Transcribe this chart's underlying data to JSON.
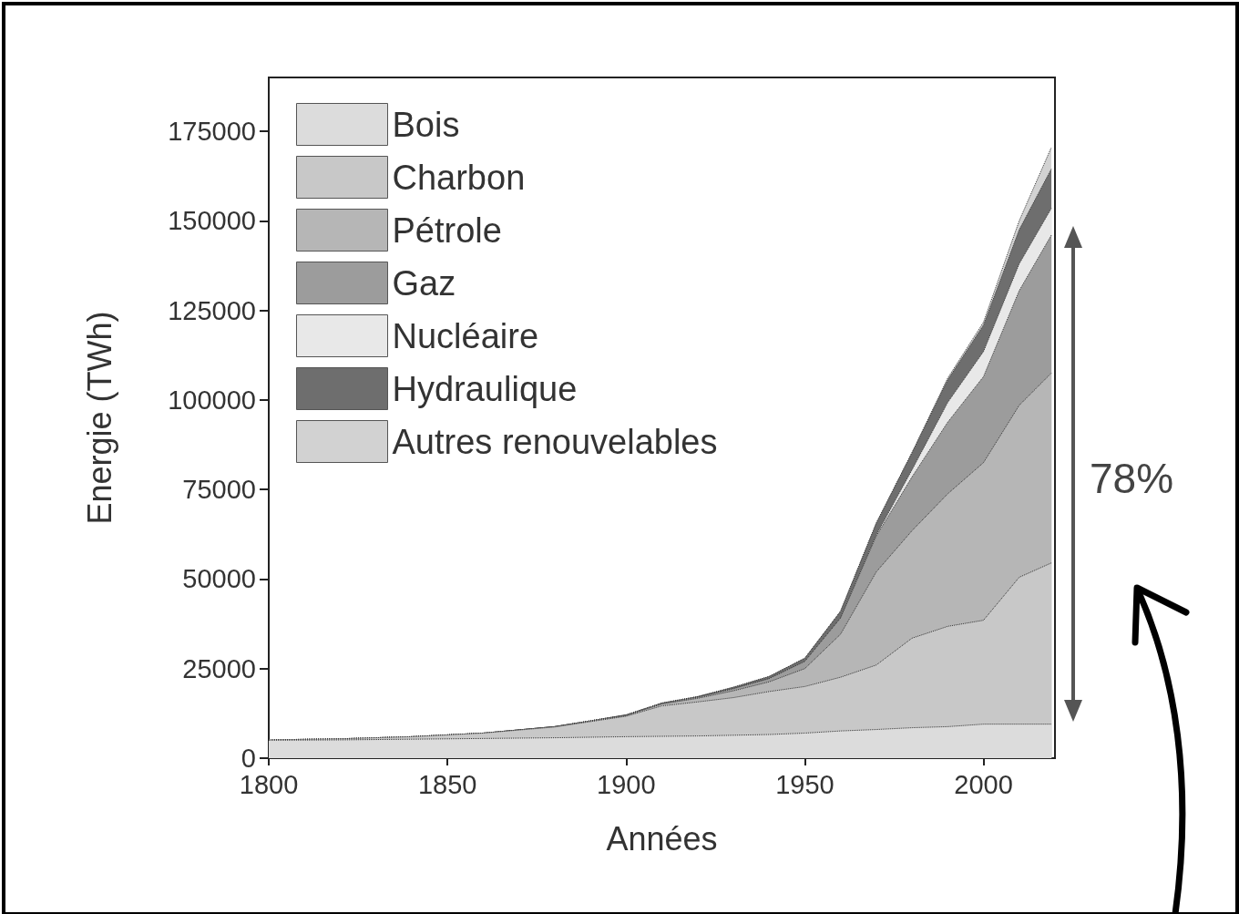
{
  "chart_data": {
    "type": "area",
    "stacked": true,
    "xlabel": "Années",
    "ylabel": "Energie (TWh)",
    "x": [
      1800,
      1820,
      1840,
      1860,
      1880,
      1900,
      1910,
      1920,
      1930,
      1940,
      1950,
      1960,
      1970,
      1980,
      1990,
      2000,
      2010,
      2019
    ],
    "series": [
      {
        "name": "Bois",
        "color": "#dcdcdc",
        "values": [
          5000,
          5100,
          5300,
          5500,
          5700,
          6000,
          6100,
          6200,
          6400,
          6600,
          7000,
          7600,
          8000,
          8500,
          8800,
          9500,
          9500,
          9500
        ]
      },
      {
        "name": "Charbon",
        "color": "#c8c8c8",
        "values": [
          100,
          300,
          700,
          1500,
          3000,
          5700,
          8500,
          9500,
          10500,
          12000,
          13000,
          15000,
          18000,
          25000,
          28000,
          29000,
          41000,
          45000
        ]
      },
      {
        "name": "Pétrole",
        "color": "#b6b6b6",
        "values": [
          0,
          0,
          0,
          0,
          100,
          200,
          500,
          1000,
          1900,
          2700,
          5000,
          12000,
          26000,
          30000,
          37000,
          44000,
          48000,
          53000
        ]
      },
      {
        "name": "Gaz",
        "color": "#9c9c9c",
        "values": [
          0,
          0,
          0,
          0,
          0,
          100,
          200,
          300,
          600,
          900,
          2000,
          4500,
          10000,
          15000,
          20000,
          24000,
          32000,
          38500
        ]
      },
      {
        "name": "Nucléaire",
        "color": "#e8e8e8",
        "values": [
          0,
          0,
          0,
          0,
          0,
          0,
          0,
          0,
          0,
          0,
          0,
          0,
          300,
          2000,
          5500,
          7000,
          7500,
          7500
        ]
      },
      {
        "name": "Hydraulique",
        "color": "#6e6e6e",
        "values": [
          0,
          0,
          0,
          0,
          0,
          100,
          100,
          200,
          400,
          600,
          900,
          1900,
          3300,
          4800,
          6300,
          7400,
          9500,
          11000
        ]
      },
      {
        "name": "Autres renouvelables",
        "color": "#d2d2d2",
        "values": [
          0,
          0,
          0,
          0,
          0,
          0,
          0,
          0,
          0,
          0,
          0,
          0,
          0,
          0,
          500,
          800,
          2500,
          6000
        ]
      }
    ],
    "xlim": [
      1800,
      2020
    ],
    "xticks": [
      1800,
      1850,
      1900,
      1950,
      2000
    ],
    "ylim": [
      0,
      190000
    ],
    "yticks": [
      0,
      25000,
      50000,
      75000,
      100000,
      125000,
      150000,
      175000
    ],
    "legend": "top left",
    "grid": false,
    "marker": "none",
    "annotations": [
      "78%"
    ]
  }
}
